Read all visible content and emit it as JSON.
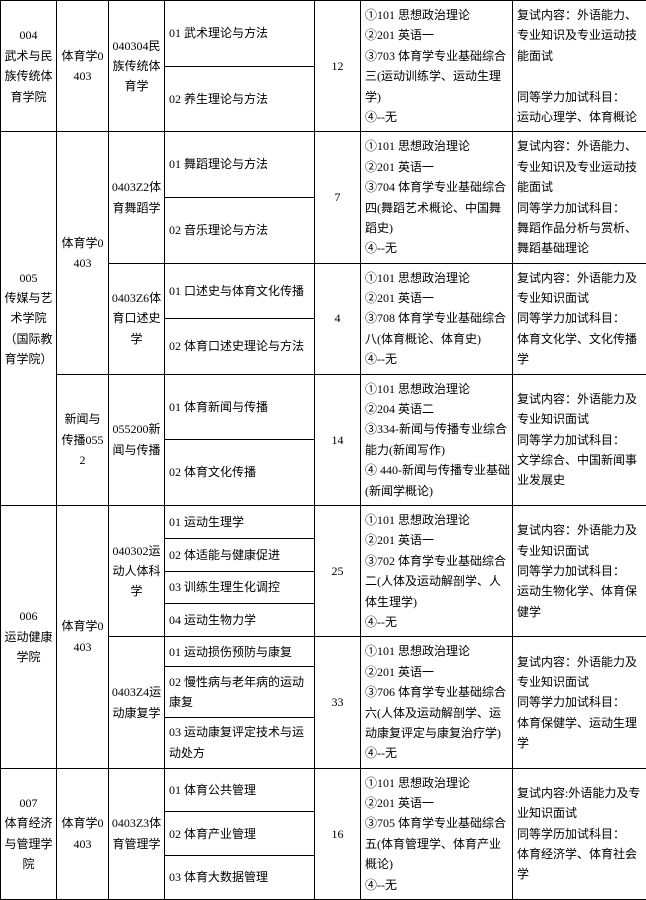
{
  "rows": [
    {
      "college": {
        "text": "004\n武术与民族传统体育学院",
        "rowspan": 2
      },
      "discipline": {
        "text": "体育学0403",
        "rowspan": 2
      },
      "major": {
        "text": "040304民族传统体育学",
        "rowspan": 2
      },
      "direction": "01 武术理论与方法",
      "quota": {
        "text": "12",
        "rowspan": 2
      },
      "exam": {
        "text": "①101 思想政治理论\n②201 英语一\n③703 体育学专业基础综合三(运动训练学、运动生理学)\n④--无",
        "rowspan": 2
      },
      "note": {
        "text": "复试内容：外语能力、专业知识及专业运动技能面试\n\n同等学力加试科目：\n运动心理学、体育概论",
        "rowspan": 2
      }
    },
    {
      "direction": "02 养生理论与方法"
    },
    {
      "college": {
        "text": "005\n传媒与艺术学院（国际教育学院）",
        "rowspan": 6
      },
      "discipline": {
        "text": "体育学0403",
        "rowspan": 4
      },
      "major": {
        "text": "0403Z2体育舞蹈学",
        "rowspan": 2
      },
      "direction": "01 舞蹈理论与方法",
      "quota": {
        "text": "7",
        "rowspan": 2
      },
      "exam": {
        "text": "①101 思想政治理论\n②201 英语一\n③704 体育学专业基础综合四(舞蹈艺术概论、中国舞蹈史)\n④--无",
        "rowspan": 2
      },
      "note": {
        "text": "复试内容：外语能力、专业知识及专业运动技能面试\n同等学力加试科目：\n舞蹈作品分析与赏析、舞蹈基础理论",
        "rowspan": 2
      }
    },
    {
      "direction": "02 音乐理论与方法"
    },
    {
      "major": {
        "text": "0403Z6体育口述史学",
        "rowspan": 2
      },
      "direction": "01 口述史与体育文化传播",
      "quota": {
        "text": "4",
        "rowspan": 2
      },
      "exam": {
        "text": "①101 思想政治理论\n②201 英语一\n③708 体育学专业基础综合八(体育概论、体育史)\n④--无",
        "rowspan": 2
      },
      "note": {
        "text": "复试内容：外语能力及专业知识面试\n同等学力加试科目：\n体育文化学、文化传播学",
        "rowspan": 2
      }
    },
    {
      "direction": "02 体育口述史理论与方法"
    },
    {
      "discipline": {
        "text": "新闻与传播0552",
        "rowspan": 2
      },
      "major": {
        "text": "055200新闻与传播",
        "rowspan": 2
      },
      "direction": "01 体育新闻与传播",
      "quota": {
        "text": "14",
        "rowspan": 2
      },
      "exam": {
        "text": "①101 思想政治理论\n②204 英语二\n③334-新闻与传播专业综合能力(新闻写作)\n④ 440-新闻与传播专业基础(新闻学概论)",
        "rowspan": 2
      },
      "note": {
        "text": "复试内容：外语能力及专业知识面试\n同等学力加试科目：\n文学综合、中国新闻事业发展史",
        "rowspan": 2
      }
    },
    {
      "direction": "02 体育文化传播"
    },
    {
      "college": {
        "text": "006\n运动健康学院",
        "rowspan": 7
      },
      "discipline": {
        "text": "体育学0403",
        "rowspan": 7
      },
      "major": {
        "text": "040302运动人体科学",
        "rowspan": 4
      },
      "direction": "01 运动生理学",
      "quota": {
        "text": "25",
        "rowspan": 4
      },
      "exam": {
        "text": "①101 思想政治理论\n②201 英语一\n③702 体育学专业基础综合二(人体及运动解剖学、人体生理学)\n④--无",
        "rowspan": 4
      },
      "note": {
        "text": "复试内容：外语能力及专业知识面试\n同等学力加试科目：\n运动生物化学、体育保健学",
        "rowspan": 4
      }
    },
    {
      "direction": "02 体适能与健康促进"
    },
    {
      "direction": "03 训练生理生化调控"
    },
    {
      "direction": "04 运动生物力学"
    },
    {
      "major": {
        "text": "0403Z4运动康复学",
        "rowspan": 3
      },
      "direction": "01 运动损伤预防与康复",
      "quota": {
        "text": "33",
        "rowspan": 3
      },
      "exam": {
        "text": "①101 思想政治理论\n②201 英语一\n③706 体育学专业基础综合六(人体及运动解剖学、运动康复评定与康复治疗学)\n④--无",
        "rowspan": 3
      },
      "note": {
        "text": "复试内容：外语能力及专业知识面试\n同等学力加试科目：\n体育保健学、运动生理学",
        "rowspan": 3
      }
    },
    {
      "direction": "02 慢性病与老年病的运动康复"
    },
    {
      "direction": "03 运动康复评定技术与运动处方"
    },
    {
      "college": {
        "text": "007\n体育经济与管理学院",
        "rowspan": 3
      },
      "discipline": {
        "text": "体育学0403",
        "rowspan": 3
      },
      "major": {
        "text": "0403Z3体育管理学",
        "rowspan": 3
      },
      "direction": "01 体育公共管理",
      "quota": {
        "text": "16",
        "rowspan": 3
      },
      "exam": {
        "text": "①101 思想政治理论\n②201 英语一\n③705 体育学专业基础综合五(体育管理学、体育产业概论)\n④--无",
        "rowspan": 3
      },
      "note": {
        "text": "复试内容:外语能力及专业知识面试\n同等学历加试科目：\n体育经济学、体育社会学",
        "rowspan": 3
      }
    },
    {
      "direction": "02 体育产业管理"
    },
    {
      "direction": "03 体育大数据管理"
    }
  ]
}
